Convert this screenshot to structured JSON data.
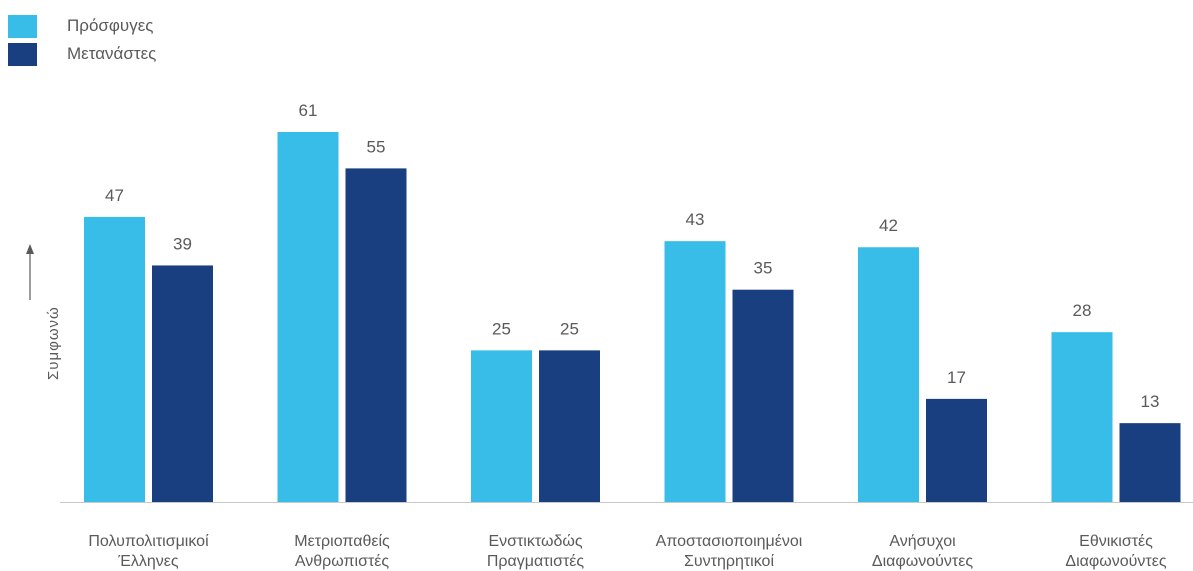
{
  "legend": {
    "items": [
      {
        "label": "Πρόσφυγες",
        "color": "#37bde8"
      },
      {
        "label": "Μετανάστες",
        "color": "#1a3f80"
      }
    ]
  },
  "axis": {
    "ylabel": "Συμφωνώ"
  },
  "colors": {
    "baseline": "#c8c8c8",
    "arrow": "#5a5a5a"
  },
  "chart_data": {
    "type": "bar",
    "categories": [
      [
        "Πολυπολιτισμικοί",
        "Έλληνες"
      ],
      [
        "Μετριοπαθείς",
        "Ανθρωπιστές"
      ],
      [
        "Ενστικτωδώς",
        "Πραγματιστές"
      ],
      [
        "Αποστασιοποιημένοι",
        "Συντηρητικοί"
      ],
      [
        "Ανήσυχοι",
        "Διαφωνούντες"
      ],
      [
        "Εθνικιστές",
        "Διαφωνούντες"
      ]
    ],
    "series": [
      {
        "name": "Πρόσφυγες",
        "values": [
          47,
          61,
          25,
          43,
          42,
          28
        ],
        "color": "#37bde8"
      },
      {
        "name": "Μετανάστες",
        "values": [
          39,
          55,
          25,
          35,
          17,
          13
        ],
        "color": "#1a3f80"
      }
    ],
    "ylabel": "Συμφωνώ",
    "ylim": [
      0,
      61
    ],
    "grid": false,
    "legend_position": "top-left"
  }
}
